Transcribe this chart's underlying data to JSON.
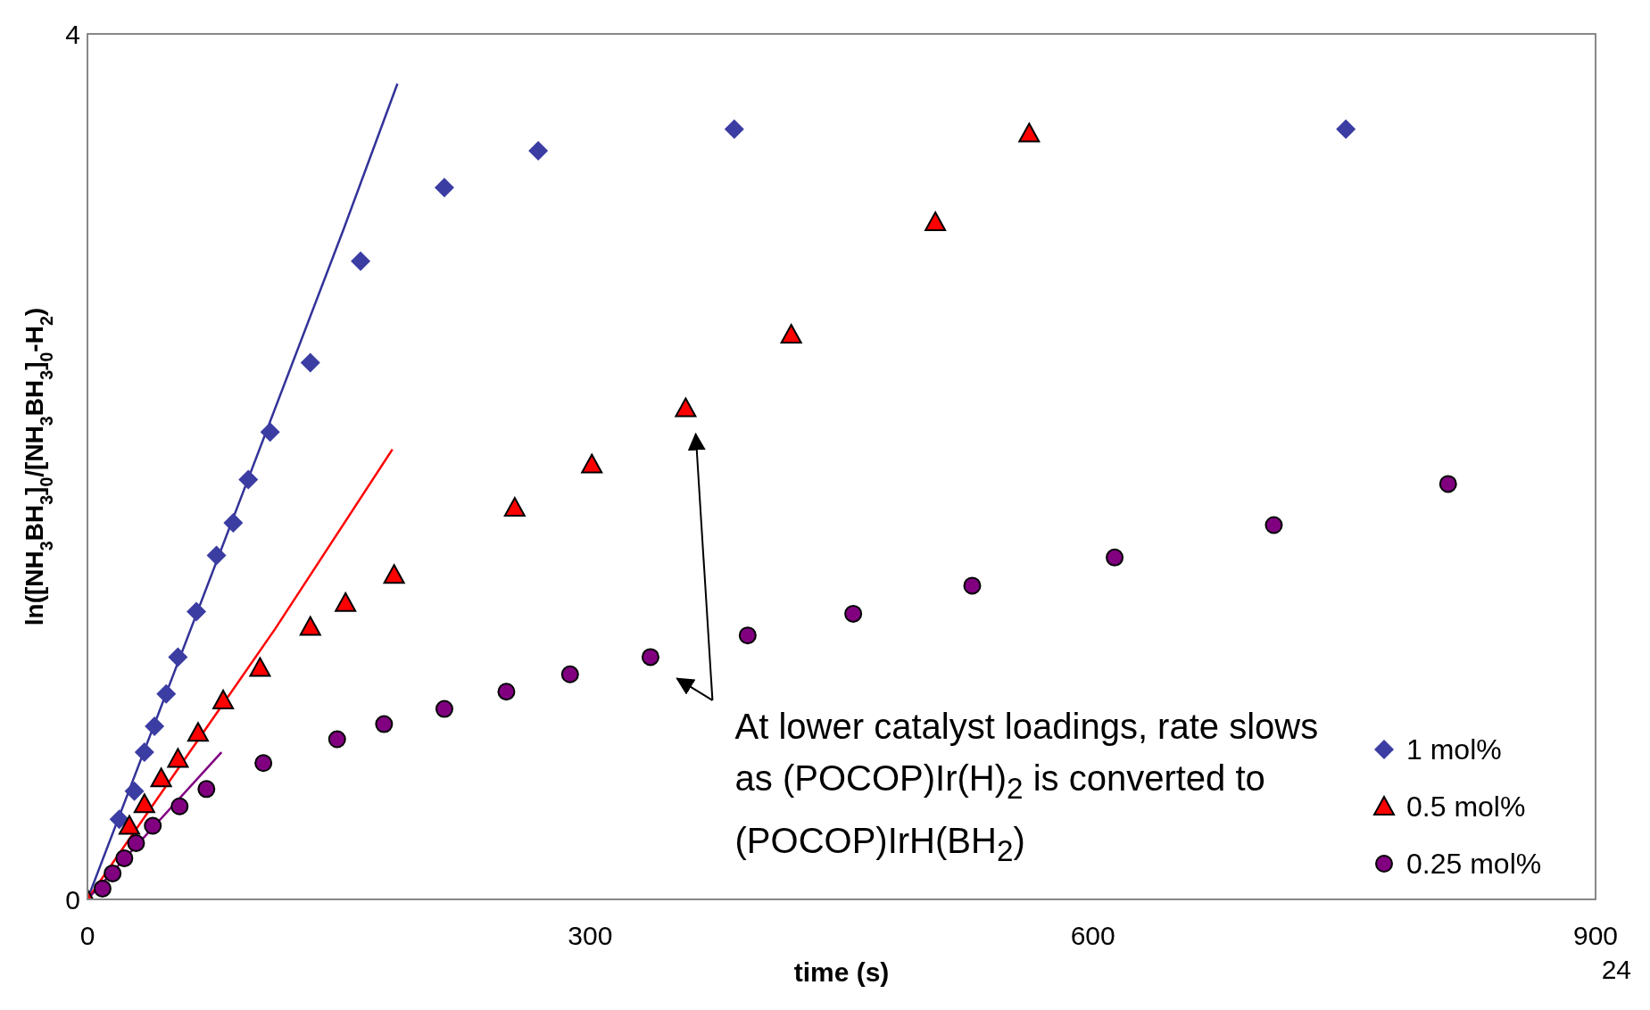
{
  "chart_data": {
    "type": "scatter",
    "xlabel": "time (s)",
    "ylabel": "ln([NH$_{3}$BH$_{3}$]$_{0}$/[NH$_{3}$BH$_{3}$]$_{0}$-H$_{2}$)",
    "xlim": [
      0,
      900
    ],
    "ylim": [
      0,
      4
    ],
    "xticks": [
      0,
      300,
      600,
      900
    ],
    "yticks": [
      0,
      4
    ],
    "grid": false,
    "legend": "bottom right",
    "series": [
      {
        "name": "1 mol%",
        "color": "#3b3da3",
        "marker": "diamond",
        "x": [
          19,
          28,
          34,
          40,
          47,
          54,
          65,
          77,
          87,
          96,
          109,
          133,
          163,
          213,
          269,
          386,
          751
        ],
        "values": [
          0.37,
          0.5,
          0.68,
          0.8,
          0.95,
          1.12,
          1.33,
          1.59,
          1.74,
          1.94,
          2.16,
          2.48,
          2.95,
          3.29,
          3.46,
          3.56,
          3.56
        ]
      },
      {
        "name": "0.5 mol%",
        "color": "#ff0000",
        "marker": "triangle",
        "x": [
          0,
          25,
          34,
          44,
          54,
          66,
          81,
          103,
          133,
          154,
          183,
          255,
          301,
          357,
          420,
          506,
          562
        ],
        "values": [
          0,
          0.34,
          0.44,
          0.56,
          0.65,
          0.77,
          0.92,
          1.07,
          1.26,
          1.37,
          1.5,
          1.81,
          2.01,
          2.27,
          2.61,
          3.13,
          3.54
        ]
      },
      {
        "name": "0.25 mol%",
        "color": "#800080",
        "marker": "circle",
        "x": [
          9,
          15,
          22,
          29,
          39,
          55,
          71,
          105,
          149,
          177,
          213,
          250,
          288,
          336,
          394,
          457,
          528,
          613,
          708,
          812
        ],
        "values": [
          0.05,
          0.12,
          0.19,
          0.26,
          0.34,
          0.43,
          0.51,
          0.63,
          0.74,
          0.81,
          0.88,
          0.96,
          1.04,
          1.12,
          1.22,
          1.32,
          1.45,
          1.58,
          1.73,
          1.92
        ]
      },
      {
        "type": "line",
        "color": "#333399",
        "x": [
          0,
          153,
          185
        ],
        "values": [
          0,
          3.1,
          3.77
        ]
      },
      {
        "type": "line",
        "color": "#ff0000",
        "x": [
          0,
          112,
          182
        ],
        "values": [
          0,
          1.25,
          2.08
        ]
      },
      {
        "type": "line",
        "color": "#800080",
        "x": [
          0,
          80
        ],
        "values": [
          0,
          0.68
        ]
      }
    ],
    "annotations": [
      "At lower catalyst loadings, rate slows as (POCOP)Ir(H)$_{2}$ is converted to (POCOP)IrH(BH$_{2}$)",
      "24"
    ]
  }
}
